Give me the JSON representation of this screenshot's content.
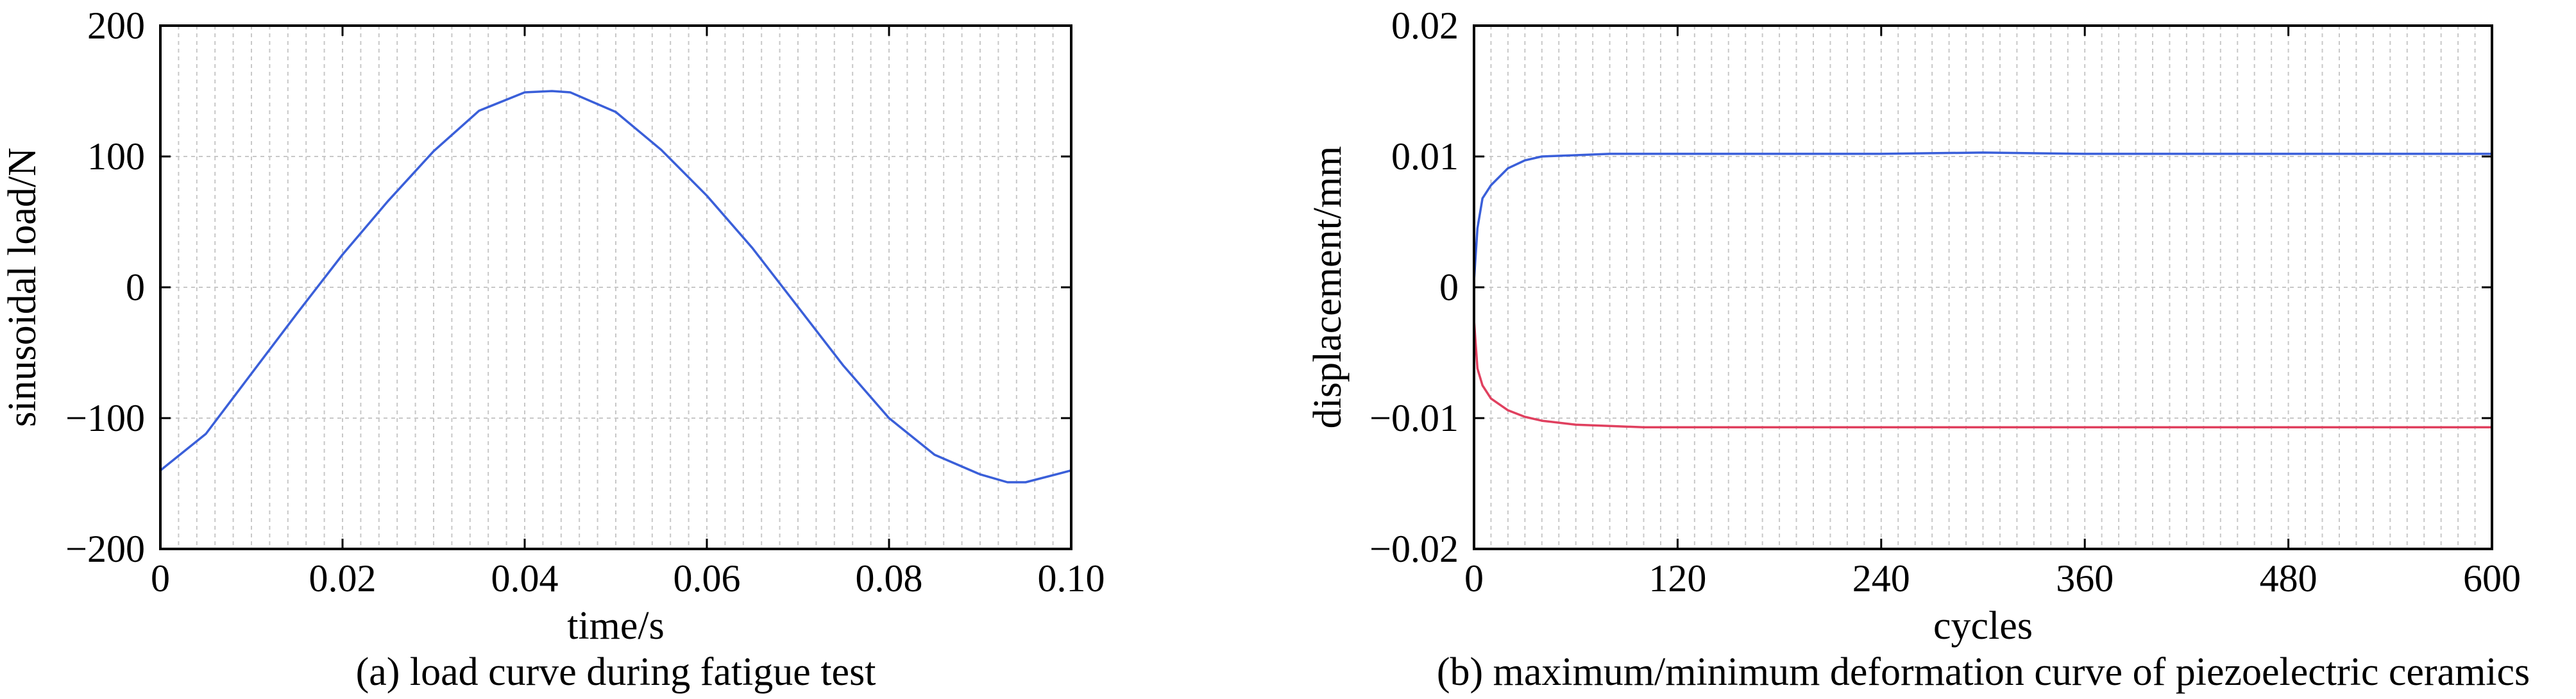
{
  "chart_data": [
    {
      "type": "line",
      "xlabel": "time/s",
      "ylabel": "sinusoidal load/N",
      "caption": "(a) load curve during fatigue test",
      "xlim": [
        0,
        0.1
      ],
      "ylim": [
        -200,
        200
      ],
      "xticks": [
        0,
        0.02,
        0.04,
        0.06,
        0.08,
        0.1
      ],
      "xtick_labels": [
        "0",
        "0.02",
        "0.04",
        "0.06",
        "0.08",
        "0.10"
      ],
      "yticks": [
        -200,
        -100,
        0,
        100,
        200
      ],
      "ytick_labels": [
        "−200",
        "−100",
        "0",
        "100",
        "200"
      ],
      "grid": true,
      "series": [
        {
          "color": "#3a5fd9",
          "x": [
            0,
            0.005,
            0.01,
            0.015,
            0.02,
            0.025,
            0.03,
            0.035,
            0.04,
            0.043,
            0.045,
            0.05,
            0.055,
            0.06,
            0.065,
            0.07,
            0.075,
            0.08,
            0.085,
            0.09,
            0.093,
            0.095,
            0.1
          ],
          "y": [
            -140,
            -112,
            -66,
            -20,
            25,
            66,
            104,
            135,
            149,
            150,
            149,
            134,
            105,
            70,
            30,
            -15,
            -60,
            -100,
            -128,
            -143,
            -149,
            -149,
            -140
          ]
        }
      ]
    },
    {
      "type": "line",
      "xlabel": "cycles",
      "ylabel": "displacement/mm",
      "caption": "(b) maximum/minimum deformation curve of piezoelectric ceramics",
      "xlim": [
        0,
        600
      ],
      "ylim": [
        -0.02,
        0.02
      ],
      "xticks": [
        0,
        120,
        240,
        360,
        480,
        600
      ],
      "xtick_labels": [
        "0",
        "120",
        "240",
        "360",
        "480",
        "600"
      ],
      "yticks": [
        -0.02,
        -0.01,
        0,
        0.01,
        0.02
      ],
      "ytick_labels": [
        "−0.02",
        "−0.01",
        "0",
        "0.01",
        "0.02"
      ],
      "grid": true,
      "series": [
        {
          "color": "#3a5fd9",
          "x": [
            0,
            2,
            5,
            10,
            20,
            30,
            40,
            60,
            80,
            100,
            120,
            240,
            300,
            360,
            480,
            600
          ],
          "y": [
            0.0005,
            0.0045,
            0.0068,
            0.0078,
            0.0091,
            0.0097,
            0.01,
            0.0101,
            0.0102,
            0.0102,
            0.0102,
            0.0102,
            0.0103,
            0.0102,
            0.0102,
            0.0102
          ]
        },
        {
          "color": "#e0405f",
          "x": [
            0,
            2,
            5,
            10,
            20,
            30,
            40,
            60,
            80,
            100,
            120,
            240,
            300,
            360,
            480,
            600
          ],
          "y": [
            -0.0025,
            -0.0062,
            -0.0075,
            -0.0085,
            -0.0094,
            -0.0099,
            -0.0102,
            -0.0105,
            -0.0106,
            -0.0107,
            -0.0107,
            -0.0107,
            -0.0107,
            -0.0107,
            -0.0107,
            -0.0107
          ]
        }
      ]
    }
  ]
}
